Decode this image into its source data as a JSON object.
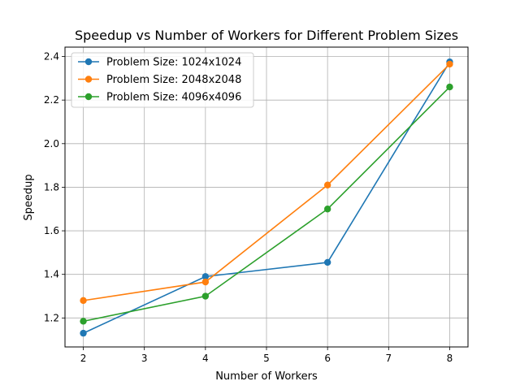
{
  "chart_data": {
    "type": "line",
    "title": "Speedup vs Number of Workers for Different Problem Sizes",
    "xlabel": "Number of Workers",
    "ylabel": "Speedup",
    "x": [
      2,
      4,
      6,
      8
    ],
    "xlim": [
      1.7,
      8.3
    ],
    "ylim": [
      1.067,
      2.443
    ],
    "xticks": [
      2,
      3,
      4,
      5,
      6,
      7,
      8
    ],
    "yticks": [
      1.2,
      1.4,
      1.6,
      1.8,
      2.0,
      2.2,
      2.4
    ],
    "xtick_labels": [
      "2",
      "3",
      "4",
      "5",
      "6",
      "7",
      "8"
    ],
    "ytick_labels": [
      "1.2",
      "1.4",
      "1.6",
      "1.8",
      "2.0",
      "2.2",
      "2.4"
    ],
    "grid": true,
    "legend_position": "top-left",
    "series": [
      {
        "name": "Problem Size: 1024x1024",
        "color": "#1f77b4",
        "values": [
          1.13,
          1.39,
          1.455,
          2.375
        ]
      },
      {
        "name": "Problem Size: 2048x2048",
        "color": "#ff7f0e",
        "values": [
          1.28,
          1.365,
          1.81,
          2.365
        ]
      },
      {
        "name": "Problem Size: 4096x4096",
        "color": "#2ca02c",
        "values": [
          1.185,
          1.3,
          1.7,
          2.26
        ]
      }
    ]
  }
}
